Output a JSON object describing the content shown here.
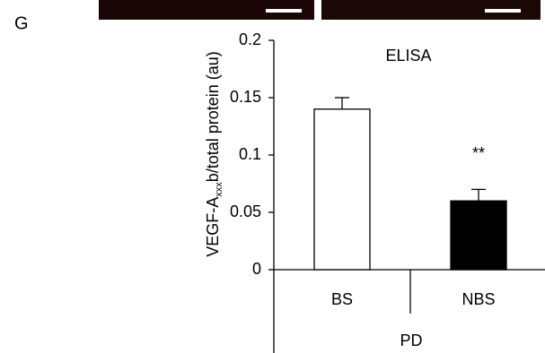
{
  "panel_label": "G",
  "chart_data": {
    "type": "bar",
    "title": "ELISA",
    "y_label": {
      "main": "VEGF-A",
      "subscript": "xxx",
      "rest": "b/total protein (au)"
    },
    "categories": [
      "BS",
      "NBS"
    ],
    "group_label": "PD",
    "values": [
      0.14,
      0.06
    ],
    "errors": [
      0.01,
      0.01
    ],
    "colors": [
      "#ffffff",
      "#000000"
    ],
    "annotations": [
      {
        "category": 1,
        "text": "**"
      }
    ],
    "ylim": [
      0,
      0.2
    ],
    "yticks": [
      0,
      0.05,
      0.1,
      0.15,
      0.2
    ]
  }
}
